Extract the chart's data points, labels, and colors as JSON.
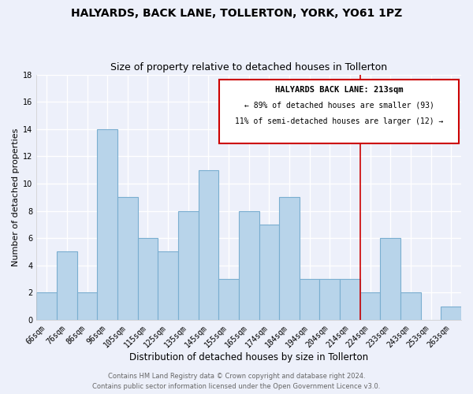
{
  "title": "HALYARDS, BACK LANE, TOLLERTON, YORK, YO61 1PZ",
  "subtitle": "Size of property relative to detached houses in Tollerton",
  "xlabel": "Distribution of detached houses by size in Tollerton",
  "ylabel": "Number of detached properties",
  "bin_labels": [
    "66sqm",
    "76sqm",
    "86sqm",
    "96sqm",
    "105sqm",
    "115sqm",
    "125sqm",
    "135sqm",
    "145sqm",
    "155sqm",
    "165sqm",
    "174sqm",
    "184sqm",
    "194sqm",
    "204sqm",
    "214sqm",
    "224sqm",
    "233sqm",
    "243sqm",
    "253sqm",
    "263sqm"
  ],
  "bar_heights": [
    2,
    5,
    2,
    14,
    9,
    6,
    5,
    8,
    11,
    3,
    8,
    7,
    9,
    3,
    3,
    3,
    2,
    6,
    2,
    0,
    1
  ],
  "bar_color": "#b8d4ea",
  "bar_edge_color": "#7aaed0",
  "vline_x_index": 15,
  "vline_color": "#cc0000",
  "annotation_title": "HALYARDS BACK LANE: 213sqm",
  "annotation_line1": "← 89% of detached houses are smaller (93)",
  "annotation_line2": "11% of semi-detached houses are larger (12) →",
  "annotation_box_color": "#ffffff",
  "annotation_box_edge": "#cc0000",
  "ylim": [
    0,
    18
  ],
  "yticks": [
    0,
    2,
    4,
    6,
    8,
    10,
    12,
    14,
    16,
    18
  ],
  "footer1": "Contains HM Land Registry data © Crown copyright and database right 2024.",
  "footer2": "Contains public sector information licensed under the Open Government Licence v3.0.",
  "background_color": "#edf0fa",
  "grid_color": "#ffffff",
  "title_fontsize": 10,
  "subtitle_fontsize": 9,
  "xlabel_fontsize": 8.5,
  "ylabel_fontsize": 8,
  "tick_fontsize": 7,
  "annotation_title_fontsize": 7.5,
  "annotation_text_fontsize": 7,
  "footer_fontsize": 6
}
